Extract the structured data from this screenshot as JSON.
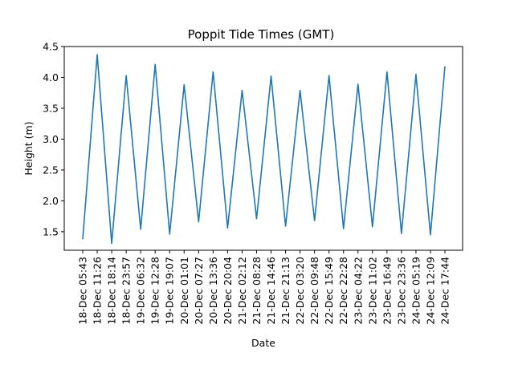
{
  "chart_data": {
    "type": "line",
    "title": "Poppit Tide Times (GMT)",
    "xlabel": "Date",
    "ylabel": "Height (m)",
    "ylim": [
      1.2,
      4.5
    ],
    "yticks": [
      "1.5",
      "2.0",
      "2.5",
      "3.0",
      "3.5",
      "4.0",
      "4.5"
    ],
    "grid": false,
    "categories": [
      "18-Dec 05:43",
      "18-Dec 11:26",
      "18-Dec 18:14",
      "18-Dec 23:57",
      "19-Dec 06:32",
      "19-Dec 12:28",
      "19-Dec 19:07",
      "20-Dec 01:01",
      "20-Dec 07:27",
      "20-Dec 13:36",
      "20-Dec 20:04",
      "21-Dec 02:12",
      "21-Dec 08:28",
      "21-Dec 14:46",
      "21-Dec 21:13",
      "22-Dec 03:20",
      "22-Dec 09:48",
      "22-Dec 15:49",
      "22-Dec 22:28",
      "23-Dec 04:22",
      "23-Dec 11:02",
      "23-Dec 16:49",
      "23-Dec 23:36",
      "24-Dec 05:19",
      "24-Dec 12:09",
      "24-Dec 17:44"
    ],
    "series": [
      {
        "color": "#1f77b4",
        "values": [
          1.38,
          4.37,
          1.31,
          4.03,
          1.54,
          4.21,
          1.46,
          3.88,
          1.66,
          4.09,
          1.56,
          3.79,
          1.71,
          4.02,
          1.59,
          3.79,
          1.68,
          4.03,
          1.55,
          3.89,
          1.58,
          4.09,
          1.47,
          4.05,
          1.45,
          4.18
        ]
      }
    ]
  }
}
